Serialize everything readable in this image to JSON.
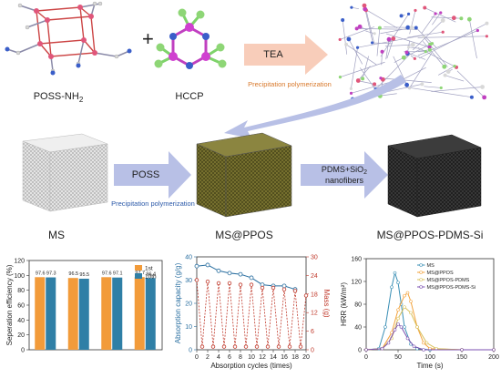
{
  "molecules": {
    "poss_label": "POSS-NH",
    "poss_sub": "2",
    "plus": "+",
    "hccp_label": "HCCP"
  },
  "reaction": {
    "reagent": "TEA",
    "method": "Precipitation polymerization"
  },
  "process": {
    "step1_reagent": "POSS",
    "step1_method": "Precipitation polymerization",
    "step2_line1": "PDMS+SiO",
    "step2_sub": "2",
    "step2_line2": "nanofibers"
  },
  "sponges": {
    "ms": "MS",
    "ms_ppos": "MS@PPOS",
    "ms_ppos_pdms_si": "MS@PPOS-PDMS-Si"
  },
  "colors": {
    "arrow": "#b8c0e6",
    "arrow_orange": "#f7c8b2",
    "ms": "#cfcfcf",
    "ms_ppos": "#6b6a2a",
    "ms_final": "#262626",
    "bar_1st": "#f29b3a",
    "bar_10th": "#2f7fa6"
  },
  "chart_data": [
    {
      "type": "bar",
      "ylabel": "Seperation efficiency (%)",
      "ylim": [
        0,
        120
      ],
      "yticks": [
        0,
        20,
        40,
        60,
        80,
        100,
        120
      ],
      "categories": [
        "",
        "",
        "",
        ""
      ],
      "series": [
        {
          "name": "1st",
          "values": [
            97.6,
            96.5,
            97.6,
            97.7
          ],
          "labels": [
            "97.6",
            "96.5",
            "97.6",
            "97.7"
          ]
        },
        {
          "name": "10th",
          "values": [
            97.3,
            95.5,
            97.1,
            96.4
          ],
          "labels": [
            "97.3",
            "95.5",
            "97.1",
            "96.4"
          ]
        }
      ],
      "legend": "top-right"
    },
    {
      "type": "line",
      "xlabel": "Absorption cycles (times)",
      "ylabel": "Absorption capacity (g/g)",
      "y2label": "Mass (g)",
      "xlim": [
        0,
        20
      ],
      "xticks": [
        0,
        2,
        4,
        6,
        8,
        10,
        12,
        14,
        16,
        18,
        20
      ],
      "ylim": [
        0,
        40
      ],
      "yticks": [
        0,
        10,
        20,
        30,
        40
      ],
      "y2lim": [
        0,
        30
      ],
      "y2ticks": [
        0,
        6,
        12,
        18,
        24,
        30
      ],
      "series": [
        {
          "name": "",
          "axis": "left",
          "x": [
            0,
            2,
            4,
            6,
            8,
            10,
            12,
            14,
            16,
            18
          ],
          "y": [
            36,
            36.5,
            34,
            33,
            32.5,
            31,
            28,
            27.5,
            27.5,
            26
          ]
        },
        {
          "name": "",
          "axis": "right",
          "x": [
            0,
            1,
            2,
            3,
            4,
            5,
            6,
            7,
            8,
            9,
            10,
            11,
            12,
            13,
            14,
            15,
            16,
            17,
            18,
            19,
            20
          ],
          "y": [
            22.5,
            1,
            22,
            1,
            21.5,
            1,
            21.5,
            1,
            21,
            1,
            21,
            1,
            20,
            1,
            20,
            1,
            19.5,
            1,
            19,
            1,
            17.5
          ]
        }
      ]
    },
    {
      "type": "line",
      "xlabel": "Time (s)",
      "ylabel": "HRR (kW/m²)",
      "xlim": [
        0,
        200
      ],
      "xticks": [
        0,
        50,
        100,
        150,
        200
      ],
      "ylim": [
        0,
        160
      ],
      "yticks": [
        0,
        40,
        80,
        120,
        160
      ],
      "series": [
        {
          "name": "MS",
          "color": "#3a8fb5",
          "x": [
            0,
            20,
            30,
            40,
            45,
            50,
            55,
            60,
            70,
            80,
            100,
            150,
            200
          ],
          "y": [
            0,
            2,
            40,
            110,
            135,
            118,
            80,
            40,
            10,
            2,
            0,
            0,
            0
          ]
        },
        {
          "name": "MS@PPOS",
          "color": "#f2a23b",
          "x": [
            0,
            25,
            40,
            50,
            60,
            65,
            70,
            80,
            90,
            100,
            150,
            200
          ],
          "y": [
            0,
            2,
            30,
            70,
            95,
            100,
            85,
            40,
            12,
            2,
            0,
            0
          ]
        },
        {
          "name": "MS@PPOS-PDMS",
          "color": "#d8c05a",
          "x": [
            0,
            25,
            40,
            50,
            60,
            70,
            80,
            95,
            110,
            150,
            200
          ],
          "y": [
            0,
            2,
            20,
            55,
            75,
            65,
            40,
            12,
            2,
            0,
            0
          ]
        },
        {
          "name": "MS@PPOS-PDMS-Si",
          "color": "#7b4fb0",
          "x": [
            0,
            25,
            35,
            45,
            50,
            55,
            65,
            75,
            90,
            150,
            200
          ],
          "y": [
            0,
            2,
            12,
            35,
            45,
            40,
            20,
            6,
            0,
            0,
            0
          ]
        }
      ],
      "legend": "top-right"
    }
  ]
}
